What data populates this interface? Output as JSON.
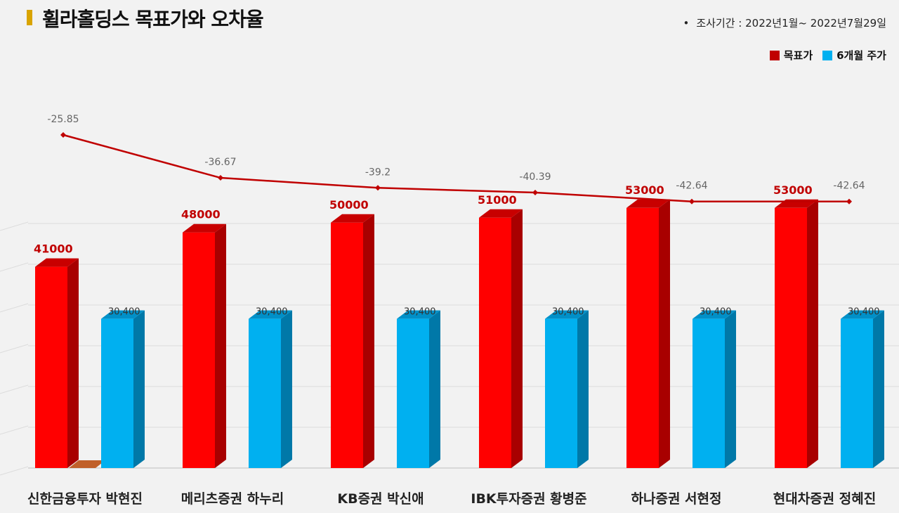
{
  "header": {
    "title": "휠라홀딩스 목표가와 오차율",
    "period": "조사기간 : 2022년1월~ 2022년7월29일"
  },
  "legend": [
    {
      "name": "목표가",
      "color": "#c00000"
    },
    {
      "name": "6개월 주가",
      "color": "#00b0f0"
    }
  ],
  "chart_data": {
    "type": "bar",
    "categories": [
      "신한금융투자 박현진",
      "메리츠증권 하누리",
      "KB증권 박신애",
      "IBK투자증권 황병준",
      "하나증권 서현정",
      "현대차증권 정혜진"
    ],
    "series": [
      {
        "name": "목표가",
        "values": [
          41000,
          48000,
          50000,
          51000,
          53000,
          53000
        ],
        "labels": [
          "41000",
          "48000",
          "50000",
          "51000",
          "53000",
          "53000"
        ]
      },
      {
        "name": "6개월 주가",
        "values": [
          30400,
          30400,
          30400,
          30400,
          30400,
          30400
        ],
        "labels": [
          "30,400",
          "30,400",
          "30,400",
          "30,400",
          "30,400",
          "30,400"
        ]
      }
    ],
    "line_series": {
      "name": "오차율",
      "values": [
        -25.85,
        -36.67,
        -39.2,
        -40.39,
        -42.64,
        -42.64
      ],
      "labels": [
        "-25.85",
        "-36.67",
        "-39.2",
        "-40.39",
        "-42.64",
        "-42.64"
      ]
    },
    "ylim": [
      0,
      60000
    ],
    "grid": true,
    "legend_position": "top-right",
    "colors": {
      "target": "#ff0000",
      "target_side": "#a80000",
      "target_top": "#c80000",
      "price": "#00b0f0",
      "price_side": "#0078a8",
      "price_top": "#0090c8",
      "line": "#c00000",
      "accent": "#d9a400"
    }
  }
}
